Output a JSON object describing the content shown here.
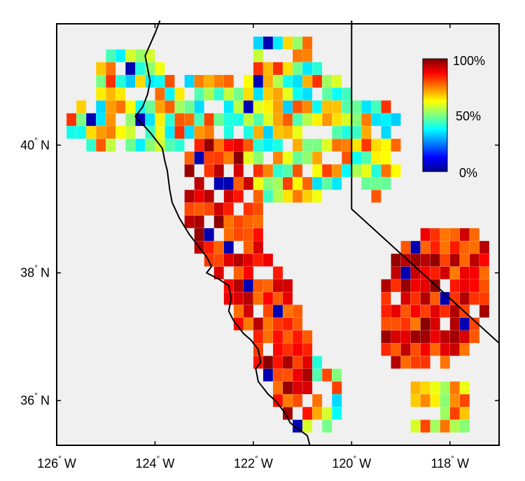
{
  "map": {
    "lon_range": [
      -126,
      -117
    ],
    "lat_range": [
      35.3,
      41.9
    ],
    "cell_size_deg": 0.2
  },
  "axes": {
    "x_ticks": [
      {
        "value": -126,
        "label": "126",
        "hemi": "W"
      },
      {
        "value": -124,
        "label": "124",
        "hemi": "W"
      },
      {
        "value": -122,
        "label": "122",
        "hemi": "W"
      },
      {
        "value": -120,
        "label": "120",
        "hemi": "W"
      },
      {
        "value": -118,
        "label": "118",
        "hemi": "W"
      }
    ],
    "y_ticks": [
      {
        "value": 36,
        "label": "36",
        "hemi": "N"
      },
      {
        "value": 38,
        "label": "38",
        "hemi": "N"
      },
      {
        "value": 40,
        "label": "40",
        "hemi": "N"
      }
    ],
    "degree_symbol": "°"
  },
  "colorbar": {
    "labels": {
      "max": "100%",
      "mid": "50%",
      "min": "0%"
    },
    "colormap": "jet"
  },
  "colors": {
    "background": "#f0f0f0",
    "frame": "#000000",
    "coastline": "#000000"
  },
  "grid_note_cells": []
}
